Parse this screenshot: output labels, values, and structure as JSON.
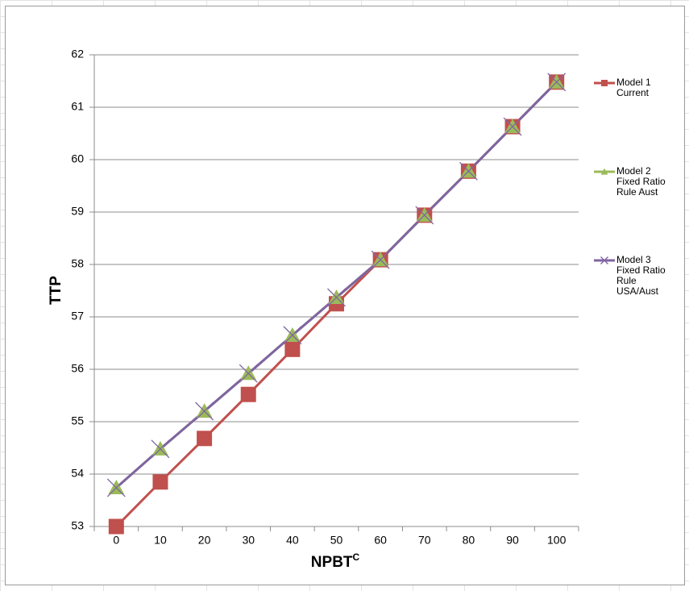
{
  "chart_data": {
    "type": "line",
    "x_label": "NPBT",
    "x_label_sup": "C",
    "y_label": "TTP",
    "categories": [
      "0",
      "10",
      "20",
      "30",
      "40",
      "50",
      "60",
      "70",
      "80",
      "90",
      "100"
    ],
    "series": [
      {
        "name": "Model 1 Current",
        "color": "#c0504d",
        "marker": "square",
        "values": [
          53.0,
          53.85,
          54.68,
          55.52,
          56.38,
          57.25,
          58.09,
          58.94,
          59.78,
          60.63,
          61.48
        ]
      },
      {
        "name": "Model 2 Fixed Ratio Rule Aust",
        "color": "#9bbb59",
        "marker": "triangle",
        "values": [
          53.74,
          54.48,
          55.2,
          55.92,
          56.65,
          57.37,
          58.09,
          58.94,
          59.78,
          60.63,
          61.48
        ]
      },
      {
        "name": "Model 3 Fixed Ratio Rule USA/Aust",
        "color": "#8064a2",
        "marker": "x",
        "values": [
          53.74,
          54.48,
          55.2,
          55.92,
          56.65,
          57.37,
          58.09,
          58.94,
          59.78,
          60.63,
          61.48
        ]
      }
    ],
    "ylim": [
      53,
      62
    ],
    "yticks": [
      53,
      54,
      55,
      56,
      57,
      58,
      59,
      60,
      61,
      62
    ],
    "grid": true,
    "legend": "right"
  }
}
